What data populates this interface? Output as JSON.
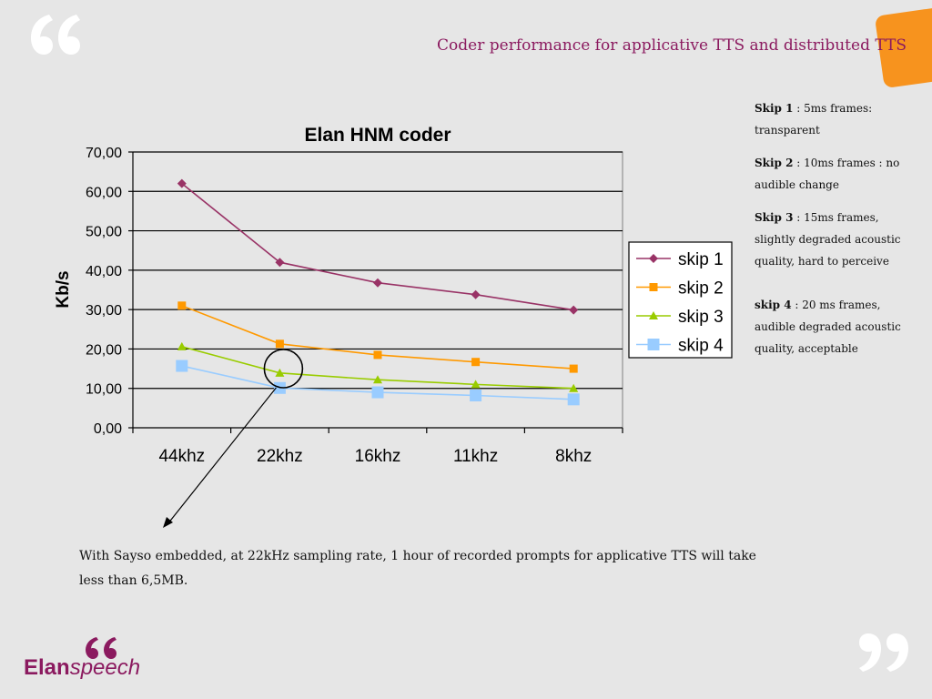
{
  "slide": {
    "title": "Coder performance for applicative TTS and distributed TTS",
    "caption": "With Sayso embedded, at 22kHz sampling rate, 1 hour of recorded prompts for applicative TTS will take less than 6,5MB.",
    "notes": [
      {
        "label": "Skip 1",
        "text": " : 5ms frames: transparent"
      },
      {
        "label": "Skip 2",
        "text": " : 10ms frames : no audible change"
      },
      {
        "label": "Skip 3",
        "text": " : 15ms frames, slightly degraded acoustic quality, hard to perceive"
      },
      {
        "label": "skip 4",
        "text": " : 20 ms frames, audible degraded acoustic quality, acceptable"
      }
    ],
    "logo": {
      "part1": "Elan",
      "part2": "speech"
    },
    "colors": {
      "accent": "#8b1a5f",
      "orange": "#f7931e",
      "background": "#e6e6e6"
    }
  },
  "chart_data": {
    "type": "line",
    "title": "Elan HNM coder",
    "xlabel": "",
    "ylabel": "Kb/s",
    "categories": [
      "44khz",
      "22khz",
      "16khz",
      "11khz",
      "8khz"
    ],
    "ylim": [
      0,
      70
    ],
    "yticks": [
      "0,00",
      "10,00",
      "20,00",
      "30,00",
      "40,00",
      "50,00",
      "60,00",
      "70,00"
    ],
    "grid": true,
    "legend_position": "right",
    "series": [
      {
        "name": "skip 1",
        "values": [
          62.0,
          42.0,
          36.8,
          33.8,
          29.9
        ],
        "color": "#993366",
        "marker": "diamond"
      },
      {
        "name": "skip 2",
        "values": [
          31.0,
          21.3,
          18.5,
          16.7,
          15.0
        ],
        "color": "#ff9900",
        "marker": "square"
      },
      {
        "name": "skip 3",
        "values": [
          20.6,
          13.9,
          12.2,
          11.0,
          10.0
        ],
        "color": "#99cc00",
        "marker": "triangle"
      },
      {
        "name": "skip 4",
        "values": [
          15.7,
          10.1,
          9.0,
          8.2,
          7.2
        ],
        "color": "#99ccff",
        "marker": "square-large"
      }
    ],
    "annotation": {
      "target_category": "22khz",
      "shape": "circle-with-arrow"
    }
  }
}
